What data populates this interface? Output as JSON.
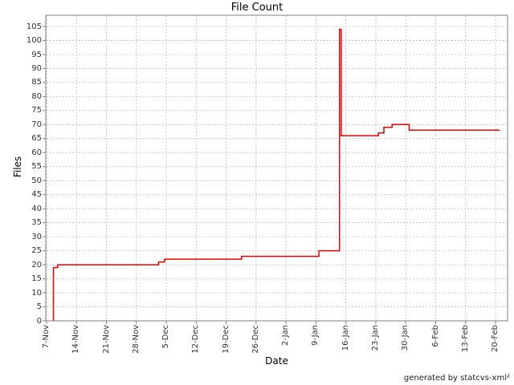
{
  "title": "File Count",
  "footer": "generated by statcvs-xml²",
  "colors": {
    "background": "#ffffff",
    "plot_border": "#808080",
    "grid": "#cccccc",
    "tick_mark": "#808080",
    "tick_text": "#333333",
    "line": "#e60000",
    "text": "#000000"
  },
  "chart_data": {
    "type": "line",
    "subtype": "step",
    "title": "File Count",
    "xlabel": "Date",
    "ylabel": "Files",
    "ylim": [
      0,
      105
    ],
    "y_tick_step": 5,
    "y_ticks": [
      0,
      5,
      10,
      15,
      20,
      25,
      30,
      35,
      40,
      45,
      50,
      55,
      60,
      65,
      70,
      75,
      80,
      85,
      90,
      95,
      100,
      105
    ],
    "x_tick_labels": [
      "7-Nov",
      "14-Nov",
      "21-Nov",
      "28-Nov",
      "5-Dec",
      "12-Dec",
      "19-Dec",
      "26-Dec",
      "2-Jan",
      "9-Jan",
      "16-Jan",
      "23-Jan",
      "30-Jan",
      "6-Feb",
      "13-Feb",
      "20-Feb"
    ],
    "x_days_per_tick": 7,
    "grid": "dashed",
    "legend": "none",
    "series": [
      {
        "name": "File Count",
        "x_unit": "days since 7-Nov",
        "points": [
          [
            1.6,
            0
          ],
          [
            1.6,
            19
          ],
          [
            2.6,
            19
          ],
          [
            2.6,
            20
          ],
          [
            26.2,
            20
          ],
          [
            26.2,
            21
          ],
          [
            27.6,
            21
          ],
          [
            27.6,
            22
          ],
          [
            45.6,
            22
          ],
          [
            45.6,
            23
          ],
          [
            63.7,
            23
          ],
          [
            63.7,
            25
          ],
          [
            68.5,
            25
          ],
          [
            68.5,
            104
          ],
          [
            68.9,
            104
          ],
          [
            68.9,
            66
          ],
          [
            77.6,
            66
          ],
          [
            77.6,
            67
          ],
          [
            78.9,
            67
          ],
          [
            78.9,
            69
          ],
          [
            80.8,
            69
          ],
          [
            80.8,
            70
          ],
          [
            84.8,
            70
          ],
          [
            84.8,
            68
          ],
          [
            106,
            68
          ]
        ]
      }
    ]
  }
}
